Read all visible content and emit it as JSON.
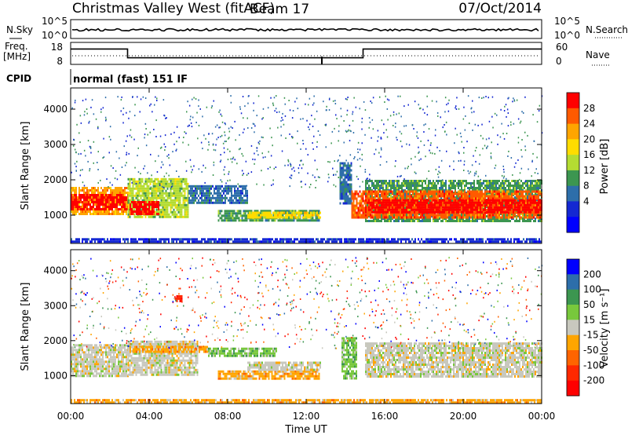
{
  "header": {
    "title": "Christmas Valley West (fitACF)",
    "beam": "Beam 17",
    "date": "07/Oct/2014"
  },
  "noise_panel": {
    "left_label": "N.Sky",
    "right_label": "N.Search",
    "left_ticks": [
      "10^5",
      "10^0"
    ],
    "right_ticks": [
      "10^5",
      "10^0"
    ]
  },
  "freq_panel": {
    "left_label_1": "Freq.",
    "left_label_2": "[MHz]",
    "left_ticks": [
      "18",
      "8"
    ],
    "right_ticks": [
      "60",
      "0"
    ],
    "right_label": "Nave",
    "cpid_label": "CPID",
    "cpid_value": "normal (fast) 151 IF",
    "freq_steps": [
      {
        "from": 0,
        "to": 2.9,
        "value": 15
      },
      {
        "from": 2.9,
        "to": 14.9,
        "value": 11
      },
      {
        "from": 14.9,
        "to": 24,
        "value": 15
      }
    ]
  },
  "chart_data": [
    {
      "type": "heatmap",
      "quantity": "power",
      "xlabel": "",
      "ylabel": "Slant Range [km]",
      "xlim": [
        0,
        24
      ],
      "ylim": [
        200,
        4600
      ],
      "yticks": [
        1000,
        2000,
        3000,
        4000
      ],
      "colorbar": {
        "label": "Power [dB]",
        "ticks": [
          "28",
          "24",
          "20",
          "16",
          "12",
          "8",
          "4"
        ],
        "colors": [
          "#ff0000",
          "#ff5a00",
          "#ffa500",
          "#ffdc00",
          "#b4dc32",
          "#3c9650",
          "#2d6eaa",
          "#1428d2",
          "#0000ff"
        ]
      },
      "bands": [
        {
          "t0": 0.0,
          "t1": 2.9,
          "r0": 1050,
          "r1": 1800,
          "level": 2
        },
        {
          "t0": 0.0,
          "t1": 2.9,
          "r0": 1150,
          "r1": 1600,
          "level": 0
        },
        {
          "t0": 2.9,
          "t1": 6.0,
          "r0": 950,
          "r1": 2050,
          "level": 4
        },
        {
          "t0": 3.0,
          "t1": 4.5,
          "r0": 1000,
          "r1": 1400,
          "level": 0
        },
        {
          "t0": 6.0,
          "t1": 9.0,
          "r0": 1350,
          "r1": 1850,
          "level": 6
        },
        {
          "t0": 7.5,
          "t1": 12.7,
          "r0": 820,
          "r1": 1150,
          "level": 5
        },
        {
          "t0": 9.0,
          "t1": 12.7,
          "r0": 900,
          "r1": 1100,
          "level": 3
        },
        {
          "t0": 13.7,
          "t1": 14.3,
          "r0": 1300,
          "r1": 2500,
          "level": 6
        },
        {
          "t0": 14.3,
          "t1": 15.0,
          "r0": 900,
          "r1": 1700,
          "level": 1
        },
        {
          "t0": 15.0,
          "t1": 24.0,
          "r0": 850,
          "r1": 2000,
          "level": 5
        },
        {
          "t0": 15.0,
          "t1": 24.0,
          "r0": 950,
          "r1": 1700,
          "level": 1
        },
        {
          "t0": 15.0,
          "t1": 24.0,
          "r0": 1100,
          "r1": 1450,
          "level": 0
        },
        {
          "t0": 0.0,
          "t1": 24.0,
          "r0": 250,
          "r1": 350,
          "level": 7
        }
      ]
    },
    {
      "type": "heatmap",
      "quantity": "velocity",
      "xlabel": "Time UT",
      "ylabel": "Slant Range [km]",
      "xlim": [
        0,
        24
      ],
      "ylim": [
        200,
        4600
      ],
      "yticks": [
        1000,
        2000,
        3000,
        4000
      ],
      "xticks": [
        "00:00",
        "04:00",
        "08:00",
        "12:00",
        "16:00",
        "20:00",
        "00:00"
      ],
      "colorbar": {
        "label": "Velocity [m s⁻¹]",
        "ticks": [
          "200",
          "100",
          "50",
          "15",
          "-15",
          "-50",
          "-100",
          "-200"
        ],
        "colors": [
          "#0000ff",
          "#2d6eaa",
          "#3c9650",
          "#78c83c",
          "#c8c8be",
          "#ffa500",
          "#ff6400",
          "#ff2800",
          "#ff0000"
        ]
      },
      "bands": [
        {
          "t0": 0.0,
          "t1": 2.9,
          "r0": 1000,
          "r1": 1900,
          "level": 4
        },
        {
          "t0": 2.9,
          "t1": 6.5,
          "r0": 1000,
          "r1": 2000,
          "level": 4
        },
        {
          "t0": 3.0,
          "t1": 7.0,
          "r0": 1700,
          "r1": 1850,
          "level": 5
        },
        {
          "t0": 7.0,
          "t1": 10.5,
          "r0": 1550,
          "r1": 1800,
          "level": 3
        },
        {
          "t0": 7.5,
          "t1": 12.7,
          "r0": 900,
          "r1": 1150,
          "level": 5
        },
        {
          "t0": 9.0,
          "t1": 12.7,
          "r0": 1150,
          "r1": 1400,
          "level": 4
        },
        {
          "t0": 13.8,
          "t1": 14.6,
          "r0": 900,
          "r1": 2100,
          "level": 3
        },
        {
          "t0": 15.0,
          "t1": 24.0,
          "r0": 950,
          "r1": 1950,
          "level": 4
        },
        {
          "t0": 5.3,
          "t1": 5.7,
          "r0": 3100,
          "r1": 3300,
          "level": 7
        },
        {
          "t0": 0.0,
          "t1": 24.0,
          "r0": 250,
          "r1": 330,
          "level": 5
        }
      ]
    }
  ]
}
